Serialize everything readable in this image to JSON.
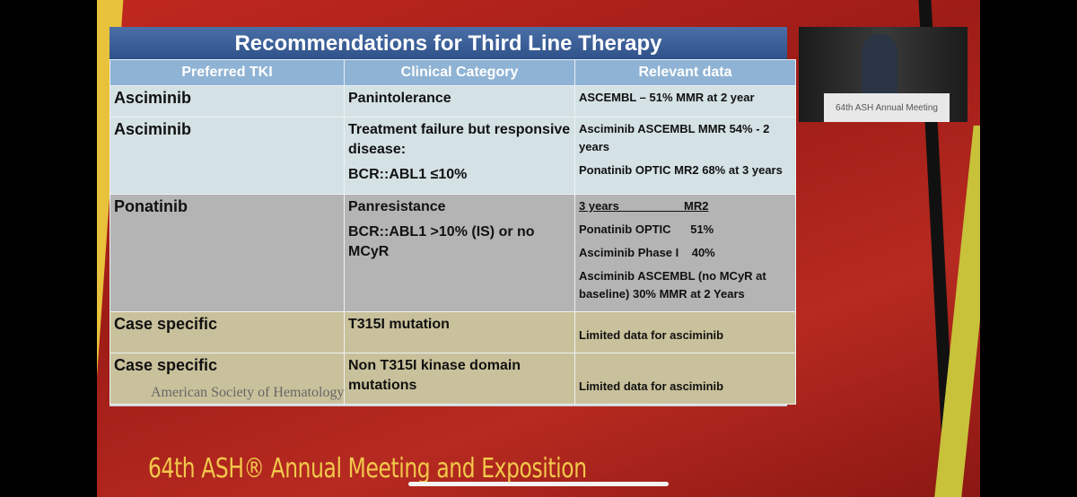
{
  "slide": {
    "title": "Recommendations for Third Line Therapy",
    "footer_logo": "American Society of Hematology",
    "table": {
      "headers": [
        "Preferred TKI",
        "Clinical Category",
        "Relevant data"
      ],
      "rows": [
        {
          "cells": [
            [
              "Asciminib"
            ],
            [
              "Panintolerance"
            ],
            [
              "ASCEMBL – 51% MMR at 2 year"
            ]
          ]
        },
        {
          "cells": [
            [
              "Asciminib"
            ],
            [
              "Treatment failure but responsive disease:",
              "BCR::ABL1 ≤10%"
            ],
            [
              "Asciminib ASCEMBL MMR 54% - 2 years",
              "Ponatinib OPTIC MR2 68% at 3 years"
            ]
          ]
        },
        {
          "cells": [
            [
              "Ponatinib"
            ],
            [
              "Panresistance",
              "BCR::ABL1 >10% (IS) or no MCyR"
            ],
            [
              "3 years                    MR2",
              "Ponatinib OPTIC      51%",
              "Asciminib Phase I    40%",
              "Asciminib ASCEMBL (no MCyR at baseline) 30% MMR at 2 Years"
            ]
          ]
        },
        {
          "cells": [
            [
              "Case specific"
            ],
            [
              "T315I mutation"
            ],
            [
              "Limited data for asciminib"
            ]
          ]
        },
        {
          "cells": [
            [
              "Case specific"
            ],
            [
              "Non T315I kinase domain mutations"
            ],
            [
              "Limited data for asciminib"
            ]
          ]
        }
      ]
    }
  },
  "webcam": {
    "podium_text": "64th ASH Annual Meeting"
  },
  "banner": {
    "text": "64th ASH® Annual Meeting and Exposition"
  }
}
